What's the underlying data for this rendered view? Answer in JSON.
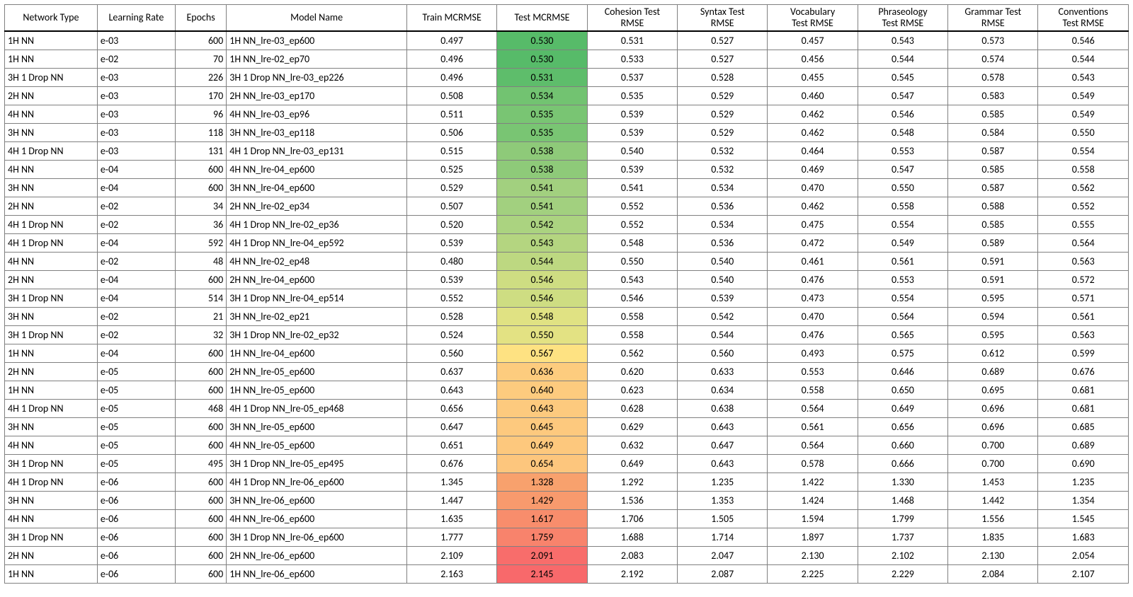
{
  "table": {
    "type": "table",
    "font_family": "Calibri",
    "header_fontsize": 14,
    "body_fontsize": 14,
    "background_color": "#ffffff",
    "border_color": "#808080",
    "header_bottom_border": "#000000",
    "heatmap_col_index": 5,
    "heatmap_stops": [
      {
        "v": 0.53,
        "color": "#57bb69"
      },
      {
        "v": 0.541,
        "color": "#a2d07f"
      },
      {
        "v": 0.548,
        "color": "#e0e283"
      },
      {
        "v": 0.567,
        "color": "#fee282"
      },
      {
        "v": 0.654,
        "color": "#fdc67d"
      },
      {
        "v": 1.328,
        "color": "#f8a16d"
      },
      {
        "v": 2.145,
        "color": "#f8696b"
      }
    ],
    "columns": [
      {
        "key": "network_type",
        "label": "Network Type",
        "align": "left",
        "class": "c-net"
      },
      {
        "key": "learning_rate",
        "label": "Learning Rate",
        "align": "left",
        "class": "c-lr"
      },
      {
        "key": "epochs",
        "label": "Epochs",
        "align": "right",
        "class": "c-ep"
      },
      {
        "key": "model_name",
        "label": "Model Name",
        "align": "left",
        "class": "c-model"
      },
      {
        "key": "train_mcrmse",
        "label": "Train MCRMSE",
        "align": "center",
        "class": "c-num"
      },
      {
        "key": "test_mcrmse",
        "label": "Test MCRMSE",
        "align": "center",
        "class": "c-num"
      },
      {
        "key": "cohesion",
        "label": "Cohesion Test\nRMSE",
        "align": "center",
        "class": "c-num"
      },
      {
        "key": "syntax",
        "label": "Syntax Test\nRMSE",
        "align": "center",
        "class": "c-num"
      },
      {
        "key": "vocabulary",
        "label": "Vocabulary\nTest RMSE",
        "align": "center",
        "class": "c-num"
      },
      {
        "key": "phraseology",
        "label": "Phraseology\nTest RMSE",
        "align": "center",
        "class": "c-num"
      },
      {
        "key": "grammar",
        "label": "Grammar Test\nRMSE",
        "align": "center",
        "class": "c-num"
      },
      {
        "key": "conventions",
        "label": "Conventions\nTest RMSE",
        "align": "center",
        "class": "c-num"
      }
    ],
    "rows": [
      [
        "1H NN",
        "e-03",
        "600",
        "1H NN_lre-03_ep600",
        "0.497",
        "0.530",
        "0.531",
        "0.527",
        "0.457",
        "0.543",
        "0.573",
        "0.546"
      ],
      [
        "1H NN",
        "e-02",
        "70",
        "1H NN_lre-02_ep70",
        "0.496",
        "0.530",
        "0.533",
        "0.527",
        "0.456",
        "0.544",
        "0.574",
        "0.544"
      ],
      [
        "3H 1 Drop NN",
        "e-03",
        "226",
        "3H 1 Drop NN_lre-03_ep226",
        "0.496",
        "0.531",
        "0.537",
        "0.528",
        "0.455",
        "0.545",
        "0.578",
        "0.543"
      ],
      [
        "2H NN",
        "e-03",
        "170",
        "2H NN_lre-03_ep170",
        "0.508",
        "0.534",
        "0.535",
        "0.529",
        "0.460",
        "0.547",
        "0.583",
        "0.549"
      ],
      [
        "4H NN",
        "e-03",
        "96",
        "4H NN_lre-03_ep96",
        "0.511",
        "0.535",
        "0.539",
        "0.529",
        "0.462",
        "0.546",
        "0.585",
        "0.549"
      ],
      [
        "3H NN",
        "e-03",
        "118",
        "3H NN_lre-03_ep118",
        "0.506",
        "0.535",
        "0.539",
        "0.529",
        "0.462",
        "0.548",
        "0.584",
        "0.550"
      ],
      [
        "4H 1 Drop NN",
        "e-03",
        "131",
        "4H 1 Drop NN_lre-03_ep131",
        "0.515",
        "0.538",
        "0.540",
        "0.532",
        "0.464",
        "0.553",
        "0.587",
        "0.554"
      ],
      [
        "4H NN",
        "e-04",
        "600",
        "4H NN_lre-04_ep600",
        "0.525",
        "0.538",
        "0.539",
        "0.532",
        "0.469",
        "0.547",
        "0.585",
        "0.558"
      ],
      [
        "3H NN",
        "e-04",
        "600",
        "3H NN_lre-04_ep600",
        "0.529",
        "0.541",
        "0.541",
        "0.534",
        "0.470",
        "0.550",
        "0.587",
        "0.562"
      ],
      [
        "2H NN",
        "e-02",
        "34",
        "2H NN_lre-02_ep34",
        "0.507",
        "0.541",
        "0.552",
        "0.536",
        "0.462",
        "0.558",
        "0.588",
        "0.552"
      ],
      [
        "4H 1 Drop NN",
        "e-02",
        "36",
        "4H 1 Drop NN_lre-02_ep36",
        "0.520",
        "0.542",
        "0.552",
        "0.534",
        "0.475",
        "0.554",
        "0.585",
        "0.555"
      ],
      [
        "4H 1 Drop NN",
        "e-04",
        "592",
        "4H 1 Drop NN_lre-04_ep592",
        "0.539",
        "0.543",
        "0.548",
        "0.536",
        "0.472",
        "0.549",
        "0.589",
        "0.564"
      ],
      [
        "4H NN",
        "e-02",
        "48",
        "4H NN_lre-02_ep48",
        "0.480",
        "0.544",
        "0.550",
        "0.540",
        "0.461",
        "0.561",
        "0.591",
        "0.563"
      ],
      [
        "2H NN",
        "e-04",
        "600",
        "2H NN_lre-04_ep600",
        "0.539",
        "0.546",
        "0.543",
        "0.540",
        "0.476",
        "0.553",
        "0.591",
        "0.572"
      ],
      [
        "3H 1 Drop NN",
        "e-04",
        "514",
        "3H 1 Drop NN_lre-04_ep514",
        "0.552",
        "0.546",
        "0.546",
        "0.539",
        "0.473",
        "0.554",
        "0.595",
        "0.571"
      ],
      [
        "3H NN",
        "e-02",
        "21",
        "3H NN_lre-02_ep21",
        "0.528",
        "0.548",
        "0.558",
        "0.542",
        "0.470",
        "0.564",
        "0.594",
        "0.561"
      ],
      [
        "3H 1 Drop NN",
        "e-02",
        "32",
        "3H 1 Drop NN_lre-02_ep32",
        "0.524",
        "0.550",
        "0.558",
        "0.544",
        "0.476",
        "0.565",
        "0.595",
        "0.563"
      ],
      [
        "1H NN",
        "e-04",
        "600",
        "1H NN_lre-04_ep600",
        "0.560",
        "0.567",
        "0.562",
        "0.560",
        "0.493",
        "0.575",
        "0.612",
        "0.599"
      ],
      [
        "2H NN",
        "e-05",
        "600",
        "2H NN_lre-05_ep600",
        "0.637",
        "0.636",
        "0.620",
        "0.633",
        "0.553",
        "0.646",
        "0.689",
        "0.676"
      ],
      [
        "1H NN",
        "e-05",
        "600",
        "1H NN_lre-05_ep600",
        "0.643",
        "0.640",
        "0.623",
        "0.634",
        "0.558",
        "0.650",
        "0.695",
        "0.681"
      ],
      [
        "4H 1 Drop NN",
        "e-05",
        "468",
        "4H 1 Drop NN_lre-05_ep468",
        "0.656",
        "0.643",
        "0.628",
        "0.638",
        "0.564",
        "0.649",
        "0.696",
        "0.681"
      ],
      [
        "3H NN",
        "e-05",
        "600",
        "3H NN_lre-05_ep600",
        "0.647",
        "0.645",
        "0.629",
        "0.643",
        "0.561",
        "0.656",
        "0.696",
        "0.685"
      ],
      [
        "4H NN",
        "e-05",
        "600",
        "4H NN_lre-05_ep600",
        "0.651",
        "0.649",
        "0.632",
        "0.647",
        "0.564",
        "0.660",
        "0.700",
        "0.689"
      ],
      [
        "3H 1 Drop NN",
        "e-05",
        "495",
        "3H 1 Drop NN_lre-05_ep495",
        "0.676",
        "0.654",
        "0.649",
        "0.643",
        "0.578",
        "0.666",
        "0.700",
        "0.690"
      ],
      [
        "4H 1 Drop NN",
        "e-06",
        "600",
        "4H 1 Drop NN_lre-06_ep600",
        "1.345",
        "1.328",
        "1.292",
        "1.235",
        "1.422",
        "1.330",
        "1.453",
        "1.235"
      ],
      [
        "3H NN",
        "e-06",
        "600",
        "3H NN_lre-06_ep600",
        "1.447",
        "1.429",
        "1.536",
        "1.353",
        "1.424",
        "1.468",
        "1.442",
        "1.354"
      ],
      [
        "4H NN",
        "e-06",
        "600",
        "4H NN_lre-06_ep600",
        "1.635",
        "1.617",
        "1.706",
        "1.505",
        "1.594",
        "1.799",
        "1.556",
        "1.545"
      ],
      [
        "3H 1 Drop NN",
        "e-06",
        "600",
        "3H 1 Drop NN_lre-06_ep600",
        "1.777",
        "1.759",
        "1.688",
        "1.714",
        "1.897",
        "1.737",
        "1.835",
        "1.683"
      ],
      [
        "2H NN",
        "e-06",
        "600",
        "2H NN_lre-06_ep600",
        "2.109",
        "2.091",
        "2.083",
        "2.047",
        "2.130",
        "2.102",
        "2.130",
        "2.054"
      ],
      [
        "1H NN",
        "e-06",
        "600",
        "1H NN_lre-06_ep600",
        "2.163",
        "2.145",
        "2.192",
        "2.087",
        "2.225",
        "2.229",
        "2.084",
        "2.107"
      ]
    ]
  }
}
